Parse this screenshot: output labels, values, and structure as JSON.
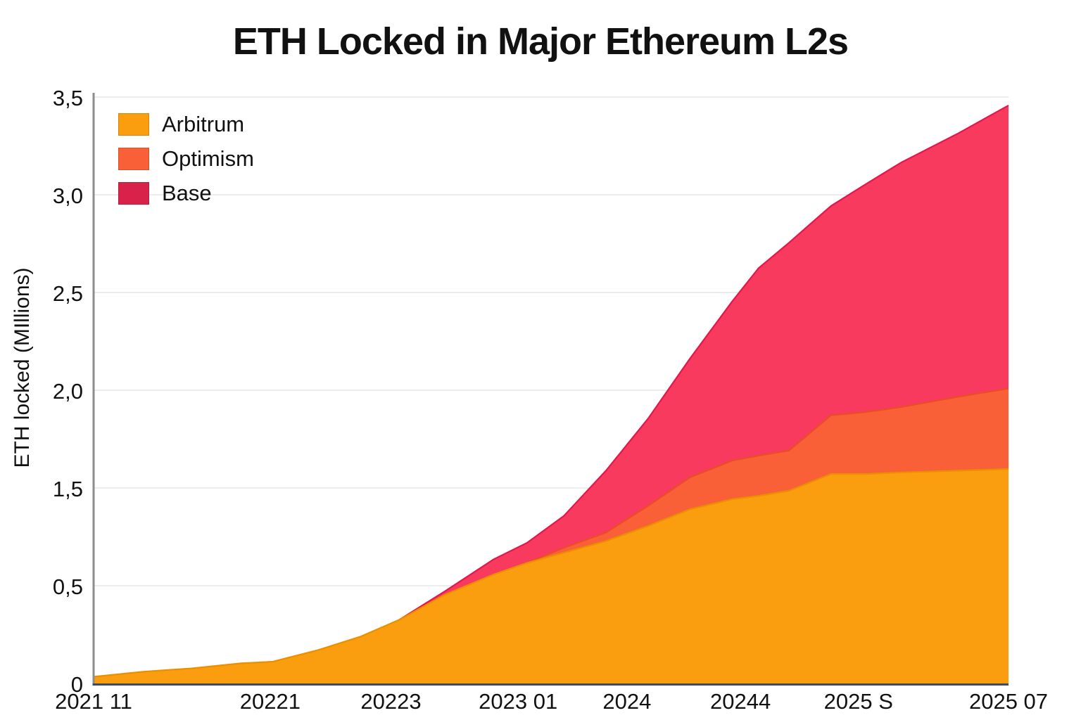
{
  "title": "ETH Locked in Major Ethereum L2s",
  "colors": {
    "arbitrum": "#FA9D0F",
    "optimism": "#F96038",
    "base_area": "#F93A5F",
    "base_legend": "#D8224A",
    "axis_left": "#8d8d8d",
    "axis_bottom": "#3d4d66",
    "grid": "#e7e7e7"
  },
  "legend": {
    "items": [
      {
        "label": "Arbitrum",
        "swatch_color": "#FA9D0F"
      },
      {
        "label": "Optimism",
        "swatch_color": "#F96038"
      },
      {
        "label": "Base",
        "swatch_color": "#D8224A"
      }
    ]
  },
  "chart_data": {
    "type": "area",
    "stacked": true,
    "title": "ETH Locked in Major Ethereum L2s",
    "xlabel": "",
    "ylabel": "ETH locked (MIllions)",
    "ylim_nominal": [
      0,
      3.5
    ],
    "grid": "horizontal",
    "legend_position": "upper-left",
    "y_tick_labels_bottom_to_top": [
      "0",
      "0,5",
      "1,5",
      "2,0",
      "2,5",
      "3,0",
      "3,5"
    ],
    "x_tick_labels": [
      "2021 11",
      "20221",
      "20223",
      "2023 01",
      "2024",
      "20244",
      "2025 S",
      "2025 07"
    ],
    "x_tick_positions": [
      0.0,
      0.193,
      0.325,
      0.464,
      0.583,
      0.707,
      0.836,
      1.0
    ],
    "x_samples": [
      0.0,
      0.054,
      0.107,
      0.161,
      0.196,
      0.246,
      0.292,
      0.334,
      0.384,
      0.437,
      0.474,
      0.514,
      0.56,
      0.606,
      0.652,
      0.698,
      0.727,
      0.76,
      0.806,
      0.844,
      0.883,
      0.944,
      1.0
    ],
    "series": [
      {
        "name": "Arbitrum",
        "area_color": "#FA9D0F",
        "edge_color": "#E98F00",
        "values": [
          0.04,
          0.07,
          0.09,
          0.12,
          0.13,
          0.2,
          0.28,
          0.38,
          0.53,
          0.65,
          0.72,
          0.78,
          0.85,
          0.94,
          1.04,
          1.1,
          1.12,
          1.15,
          1.25,
          1.25,
          1.26,
          1.27,
          1.28
        ]
      },
      {
        "name": "Optimism",
        "area_color": "#F96038",
        "edge_color": "#E94E22",
        "start_index": 10,
        "values": [
          0,
          0,
          0,
          0,
          0,
          0,
          0,
          0,
          0,
          0,
          0,
          0.03,
          0.05,
          0.12,
          0.19,
          0.23,
          0.24,
          0.24,
          0.35,
          0.37,
          0.39,
          0.44,
          0.48
        ]
      },
      {
        "name": "Base",
        "area_color": "#F93A5F",
        "edge_color": "#E5164A",
        "start_index": 7,
        "values": [
          0,
          0,
          0,
          0,
          0,
          0,
          0,
          0,
          0.02,
          0.09,
          0.12,
          0.19,
          0.37,
          0.52,
          0.71,
          0.95,
          1.12,
          1.24,
          1.25,
          1.36,
          1.46,
          1.57,
          1.69
        ]
      }
    ]
  }
}
